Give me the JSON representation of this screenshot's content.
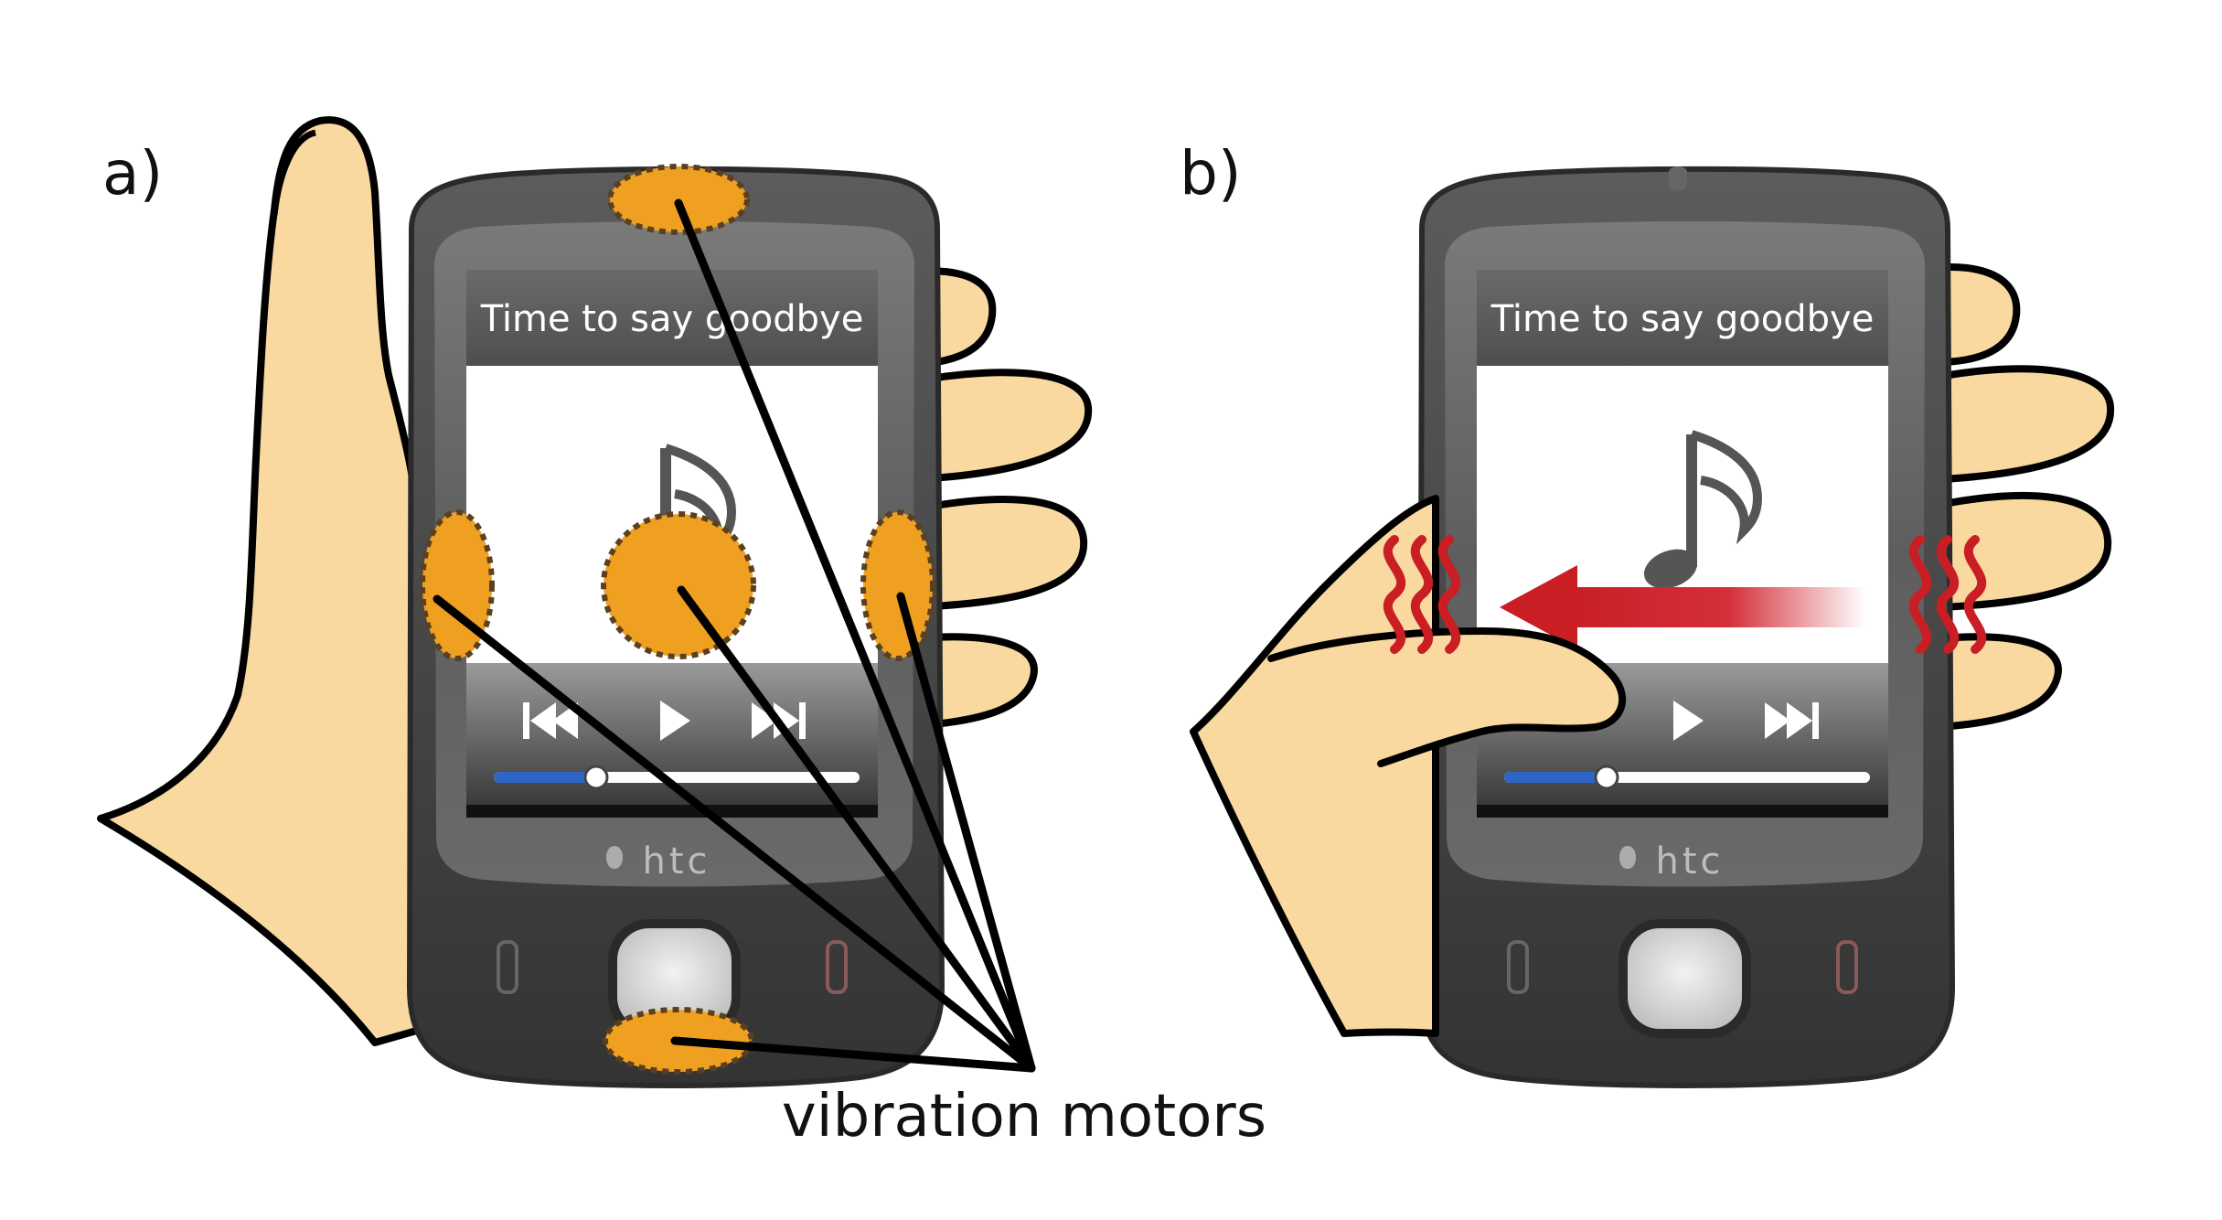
{
  "panels": [
    {
      "label": "a)",
      "song_title": "Time to say goodbye",
      "brand": "htc",
      "progress": 0.28,
      "controls": [
        "prev",
        "play",
        "next"
      ]
    },
    {
      "label": "b)",
      "song_title": "Time to say goodbye",
      "brand": "htc",
      "progress": 0.28,
      "controls": [
        "play",
        "next"
      ]
    }
  ],
  "annotation": {
    "label": "vibration motors"
  },
  "colors": {
    "skin": "#F9D9A0",
    "outline": "#000000",
    "phone_body": "#4f4f4f",
    "phone_bezel": "#3c3c3c",
    "title_bar": "#5b5b5b",
    "controls_bar": "#6e6e6e",
    "motor_fill": "#F0A020",
    "motor_border": "#6b4a1a",
    "arrow_red": "#D0202A",
    "vibration_red": "#C81E24",
    "progress_blue": "#2e66c8"
  }
}
